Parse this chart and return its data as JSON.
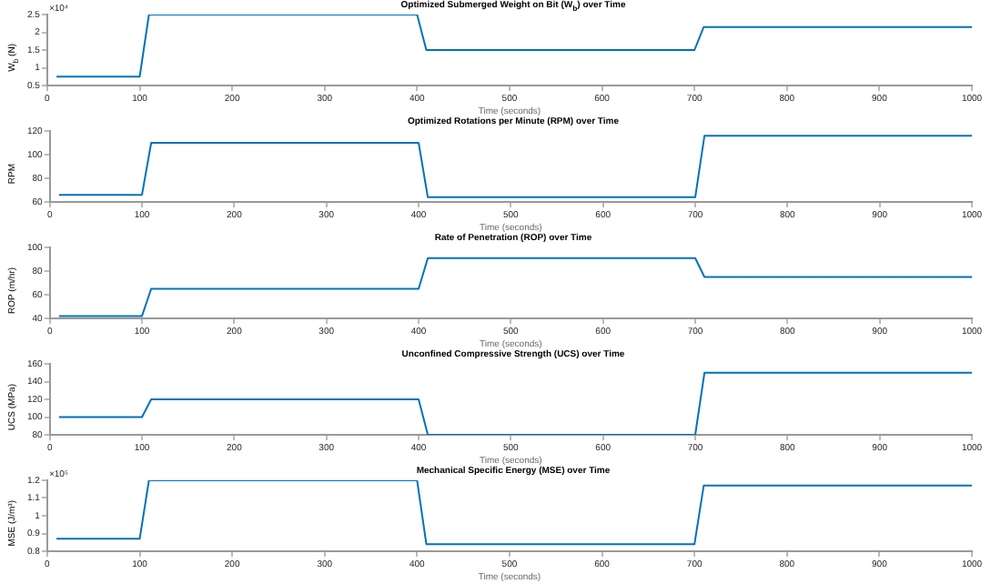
{
  "chart_data": [
    {
      "type": "line",
      "title": "Optimized Submerged Weight on Bit (W$_{b}$) over Time",
      "xlabel": "Time (seconds)",
      "ylabel": "W$_{b}$ (N)",
      "annotations": [
        "×10⁴"
      ],
      "x": [
        10,
        100,
        110,
        400,
        410,
        700,
        710,
        1000
      ],
      "values": [
        0.75,
        0.75,
        2.5,
        2.5,
        1.5,
        1.5,
        2.15,
        2.15
      ],
      "color": "#0072bd",
      "xlim": [
        0,
        1000
      ],
      "xticks": [
        0,
        100,
        200,
        300,
        400,
        500,
        600,
        700,
        800,
        900,
        1000
      ],
      "ylim": [
        0.5,
        2.5
      ],
      "yticks": [
        0.5,
        1,
        1.5,
        2,
        2.5
      ]
    },
    {
      "type": "line",
      "title": "Optimized Rotations per Minute (RPM) over Time",
      "xlabel": "Time (seconds)",
      "ylabel": "RPM",
      "x": [
        10,
        100,
        110,
        400,
        410,
        700,
        710,
        1000
      ],
      "values": [
        66,
        66,
        110,
        110,
        64,
        64,
        116,
        116
      ],
      "color": "#0072bd",
      "xlim": [
        0,
        1000
      ],
      "xticks": [
        0,
        100,
        200,
        300,
        400,
        500,
        600,
        700,
        800,
        900,
        1000
      ],
      "ylim": [
        60,
        120
      ],
      "yticks": [
        60,
        80,
        100,
        120
      ]
    },
    {
      "type": "line",
      "title": "Rate of Penetration (ROP) over Time",
      "xlabel": "Time (seconds)",
      "ylabel": "ROP (m/hr)",
      "x": [
        10,
        100,
        110,
        400,
        410,
        700,
        710,
        1000
      ],
      "values": [
        42,
        42,
        65,
        65,
        91,
        91,
        75,
        75
      ],
      "color": "#0072bd",
      "xlim": [
        0,
        1000
      ],
      "xticks": [
        0,
        100,
        200,
        300,
        400,
        500,
        600,
        700,
        800,
        900,
        1000
      ],
      "ylim": [
        40,
        100
      ],
      "yticks": [
        40,
        60,
        80,
        100
      ]
    },
    {
      "type": "line",
      "title": "Unconfined Compressive Strength (UCS) over Time",
      "xlabel": "Time (seconds)",
      "ylabel": "UCS (MPa)",
      "x": [
        10,
        100,
        110,
        400,
        410,
        700,
        710,
        1000
      ],
      "values": [
        100,
        100,
        120,
        120,
        80,
        80,
        150,
        150
      ],
      "color": "#0072bd",
      "xlim": [
        0,
        1000
      ],
      "xticks": [
        0,
        100,
        200,
        300,
        400,
        500,
        600,
        700,
        800,
        900,
        1000
      ],
      "ylim": [
        80,
        160
      ],
      "yticks": [
        80,
        100,
        120,
        140,
        160
      ]
    },
    {
      "type": "line",
      "title": "Mechanical Specific Energy (MSE) over Time",
      "xlabel": "Time (seconds)",
      "ylabel": "MSE (J/m³)",
      "annotations": [
        "×10⁵"
      ],
      "x": [
        10,
        100,
        110,
        400,
        410,
        700,
        710,
        1000
      ],
      "values": [
        0.87,
        0.87,
        1.2,
        1.2,
        0.84,
        0.84,
        1.17,
        1.17
      ],
      "color": "#0072bd",
      "xlim": [
        0,
        1000
      ],
      "xticks": [
        0,
        100,
        200,
        300,
        400,
        500,
        600,
        700,
        800,
        900,
        1000
      ],
      "ylim": [
        0.8,
        1.2
      ],
      "yticks": [
        0.8,
        0.9,
        1,
        1.1,
        1.2
      ]
    }
  ]
}
